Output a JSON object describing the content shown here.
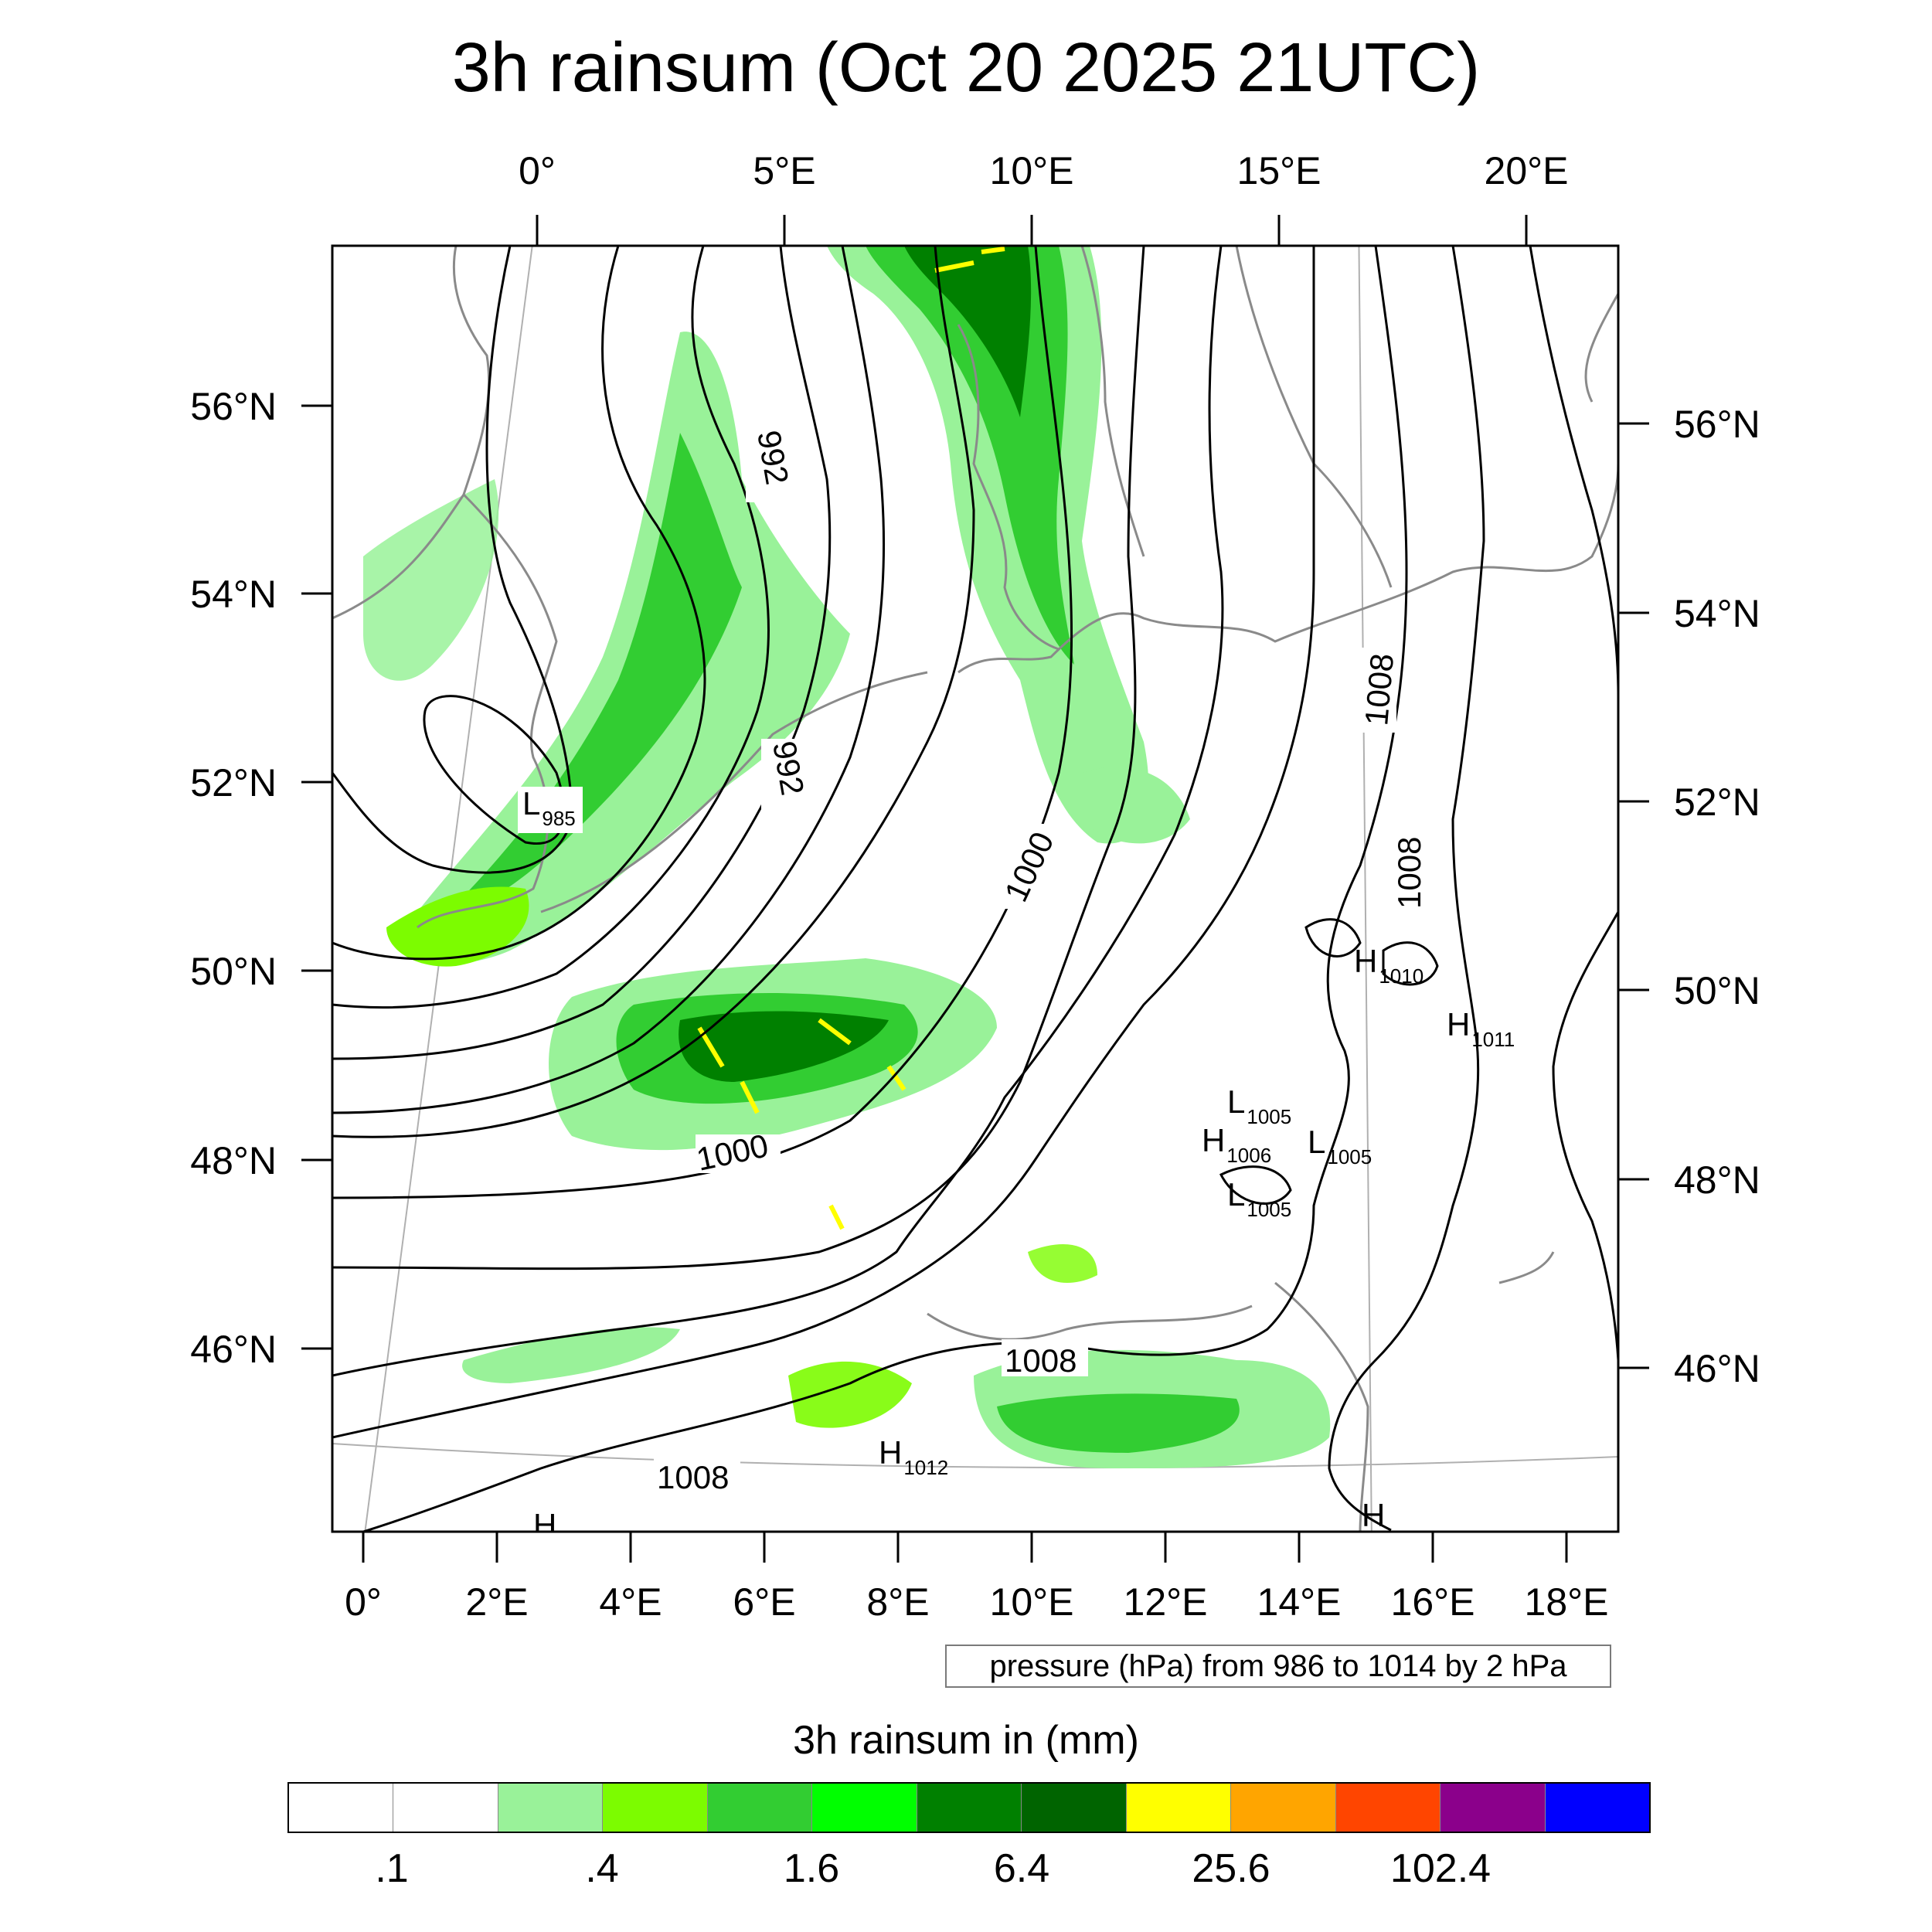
{
  "title": "3h rainsum (Oct 20 2025 21UTC)",
  "map": {
    "top_lon_labels": [
      "0°",
      "5°E",
      "10°E",
      "15°E",
      "20°E"
    ],
    "bottom_lon_labels": [
      "0°",
      "2°E",
      "4°E",
      "6°E",
      "8°E",
      "10°E",
      "12°E",
      "14°E",
      "16°E",
      "18°E"
    ],
    "left_lat_labels": [
      "56°N",
      "54°N",
      "52°N",
      "50°N",
      "48°N",
      "46°N"
    ],
    "right_lat_labels": [
      "56°N",
      "54°N",
      "52°N",
      "50°N",
      "48°N",
      "46°N"
    ],
    "contour_labels": [
      "992",
      "992",
      "1000",
      "1000",
      "1008",
      "1008",
      "1008",
      "1008"
    ],
    "pressure_centers": [
      {
        "type": "L",
        "value": "985"
      },
      {
        "type": "H",
        "value": "1010"
      },
      {
        "type": "H",
        "value": "1011"
      },
      {
        "type": "L",
        "value": "1005"
      },
      {
        "type": "H",
        "value": "1006"
      },
      {
        "type": "L",
        "value": "1005"
      },
      {
        "type": "L",
        "value": "1005"
      },
      {
        "type": "H",
        "value": "1012"
      },
      {
        "type": "H",
        "value": ""
      },
      {
        "type": "H",
        "value": ""
      }
    ],
    "colors": {
      "contour": "#000000",
      "coast": "#8a8a8a",
      "graticule": "#b0b0b0",
      "frame": "#000000"
    }
  },
  "contour_note": "pressure (hPa) from 986 to 1014 by 2 hPa",
  "legend": {
    "title": "3h rainsum in (mm)",
    "colors": [
      "#ffffff",
      "#ffffff",
      "#99f299",
      "#7cfc00",
      "#32cd32",
      "#00ff00",
      "#008000",
      "#006400",
      "#ffff00",
      "#ffa500",
      "#ff4500",
      "#8b008b",
      "#0000ff"
    ],
    "tick_labels": [
      ".1",
      ".4",
      "1.6",
      "6.4",
      "25.6",
      "102.4"
    ]
  }
}
